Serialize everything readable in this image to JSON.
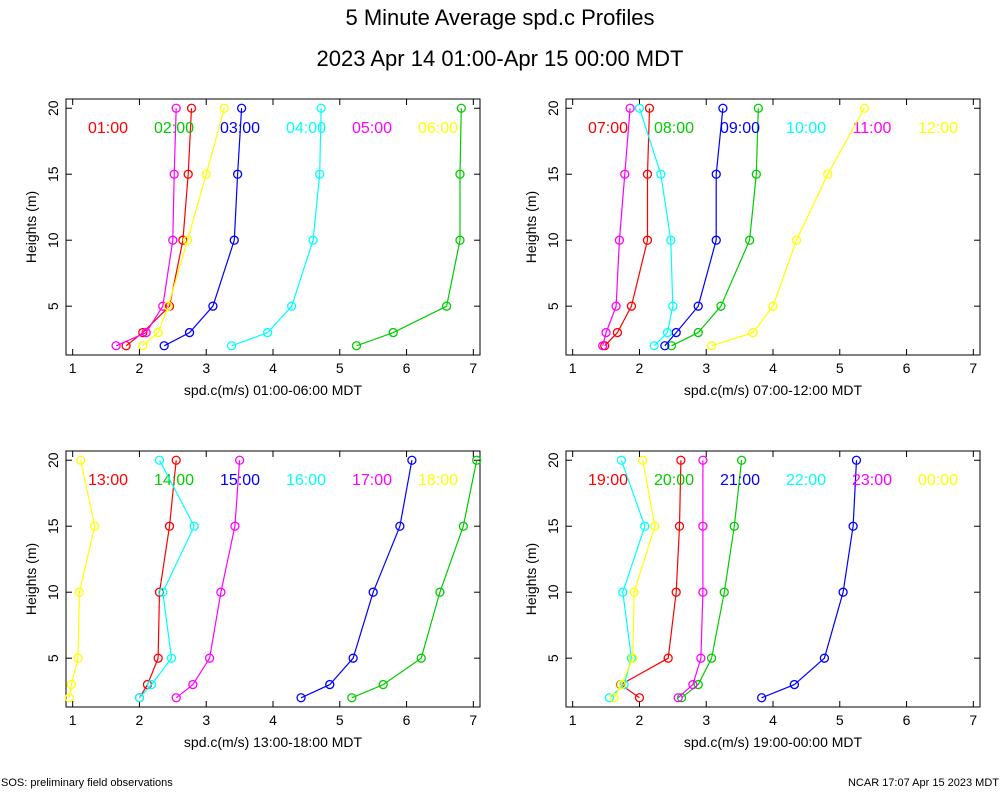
{
  "title": "5 Minute Average spd.c Profiles",
  "subtitle": "2023 Apr 14 01:00-Apr 15 00:00 MDT",
  "footer_left": "SOS: preliminary field observations",
  "footer_right": "NCAR 17:07 Apr 15 2023 MDT",
  "colors": [
    "#ff0000",
    "#00cc00",
    "#0000ff",
    "#00ffff",
    "#ff00ff",
    "#ffff00"
  ],
  "chart_data": [
    {
      "type": "line",
      "xlabel": "spd.c(m/s) 01:00-06:00 MDT",
      "ylabel": "Heights (m)",
      "xlim": [
        0.9,
        7.1
      ],
      "ylim": [
        1.3,
        20.7
      ],
      "xticks": [
        1,
        2,
        3,
        4,
        5,
        6,
        7
      ],
      "yticks": [
        5,
        10,
        15,
        20
      ],
      "heights": [
        2,
        3,
        5,
        10,
        15,
        20
      ],
      "series": [
        {
          "name": "01:00",
          "x": [
            1.8,
            2.05,
            2.45,
            2.65,
            2.73,
            2.78
          ]
        },
        {
          "name": "02:00",
          "x": [
            5.25,
            5.8,
            6.6,
            6.8,
            6.8,
            6.82
          ]
        },
        {
          "name": "03:00",
          "x": [
            2.37,
            2.75,
            3.1,
            3.42,
            3.47,
            3.53
          ]
        },
        {
          "name": "04:00",
          "x": [
            3.38,
            3.92,
            4.28,
            4.6,
            4.7,
            4.72
          ]
        },
        {
          "name": "05:00",
          "x": [
            1.65,
            2.1,
            2.35,
            2.5,
            2.52,
            2.55
          ]
        },
        {
          "name": "06:00",
          "x": [
            2.05,
            2.28,
            2.43,
            2.72,
            3.0,
            3.27
          ]
        }
      ]
    },
    {
      "type": "line",
      "xlabel": "spd.c(m/s) 07:00-12:00 MDT",
      "ylabel": "Heights (m)",
      "xlim": [
        0.9,
        7.1
      ],
      "ylim": [
        1.3,
        20.7
      ],
      "xticks": [
        1,
        2,
        3,
        4,
        5,
        6,
        7
      ],
      "yticks": [
        5,
        10,
        15,
        20
      ],
      "heights": [
        2,
        3,
        5,
        10,
        15,
        20
      ],
      "series": [
        {
          "name": "07:00",
          "x": [
            1.48,
            1.67,
            1.88,
            2.12,
            2.12,
            2.15
          ]
        },
        {
          "name": "08:00",
          "x": [
            2.48,
            2.88,
            3.22,
            3.65,
            3.75,
            3.78
          ]
        },
        {
          "name": "09:00",
          "x": [
            2.38,
            2.55,
            2.88,
            3.15,
            3.15,
            3.25
          ]
        },
        {
          "name": "10:00",
          "x": [
            2.22,
            2.42,
            2.5,
            2.47,
            2.32,
            2.0
          ]
        },
        {
          "name": "11:00",
          "x": [
            1.45,
            1.5,
            1.65,
            1.7,
            1.78,
            1.86
          ]
        },
        {
          "name": "12:00",
          "x": [
            3.08,
            3.7,
            4.0,
            4.35,
            4.82,
            5.37
          ]
        }
      ]
    },
    {
      "type": "line",
      "xlabel": "spd.c(m/s) 13:00-18:00 MDT",
      "ylabel": "Heights (m)",
      "xlim": [
        0.9,
        7.1
      ],
      "ylim": [
        1.3,
        20.7
      ],
      "xticks": [
        1,
        2,
        3,
        4,
        5,
        6,
        7
      ],
      "yticks": [
        5,
        10,
        15,
        20
      ],
      "heights": [
        2,
        3,
        5,
        10,
        15,
        20
      ],
      "series": [
        {
          "name": "13:00",
          "x": [
            2.0,
            2.12,
            2.28,
            2.3,
            2.45,
            2.55
          ]
        },
        {
          "name": "14:00",
          "x": [
            5.18,
            5.65,
            6.22,
            6.5,
            6.85,
            7.05
          ]
        },
        {
          "name": "15:00",
          "x": [
            4.42,
            4.85,
            5.2,
            5.5,
            5.9,
            6.08
          ]
        },
        {
          "name": "16:00",
          "x": [
            2.0,
            2.18,
            2.48,
            2.35,
            2.82,
            2.3
          ]
        },
        {
          "name": "17:00",
          "x": [
            2.55,
            2.8,
            3.05,
            3.22,
            3.43,
            3.5
          ]
        },
        {
          "name": "18:00",
          "x": [
            0.95,
            0.98,
            1.08,
            1.1,
            1.33,
            1.12
          ]
        }
      ]
    },
    {
      "type": "line",
      "xlabel": "spd.c(m/s) 19:00-00:00 MDT",
      "ylabel": "Heights (m)",
      "xlim": [
        0.9,
        7.1
      ],
      "ylim": [
        1.3,
        20.7
      ],
      "xticks": [
        1,
        2,
        3,
        4,
        5,
        6,
        7
      ],
      "yticks": [
        5,
        10,
        15,
        20
      ],
      "heights": [
        2,
        3,
        5,
        10,
        15,
        20
      ],
      "series": [
        {
          "name": "19:00",
          "x": [
            2.0,
            1.72,
            2.43,
            2.55,
            2.6,
            2.62
          ]
        },
        {
          "name": "20:00",
          "x": [
            2.63,
            2.88,
            3.08,
            3.27,
            3.42,
            3.53
          ]
        },
        {
          "name": "21:00",
          "x": [
            3.83,
            4.32,
            4.77,
            5.05,
            5.2,
            5.25
          ]
        },
        {
          "name": "22:00",
          "x": [
            1.55,
            1.77,
            1.88,
            1.75,
            2.08,
            1.73
          ]
        },
        {
          "name": "23:00",
          "x": [
            2.58,
            2.8,
            2.92,
            2.95,
            2.95,
            2.95
          ]
        },
        {
          "name": "00:00",
          "x": [
            1.62,
            1.73,
            1.9,
            1.92,
            2.23,
            2.05
          ]
        }
      ]
    }
  ]
}
